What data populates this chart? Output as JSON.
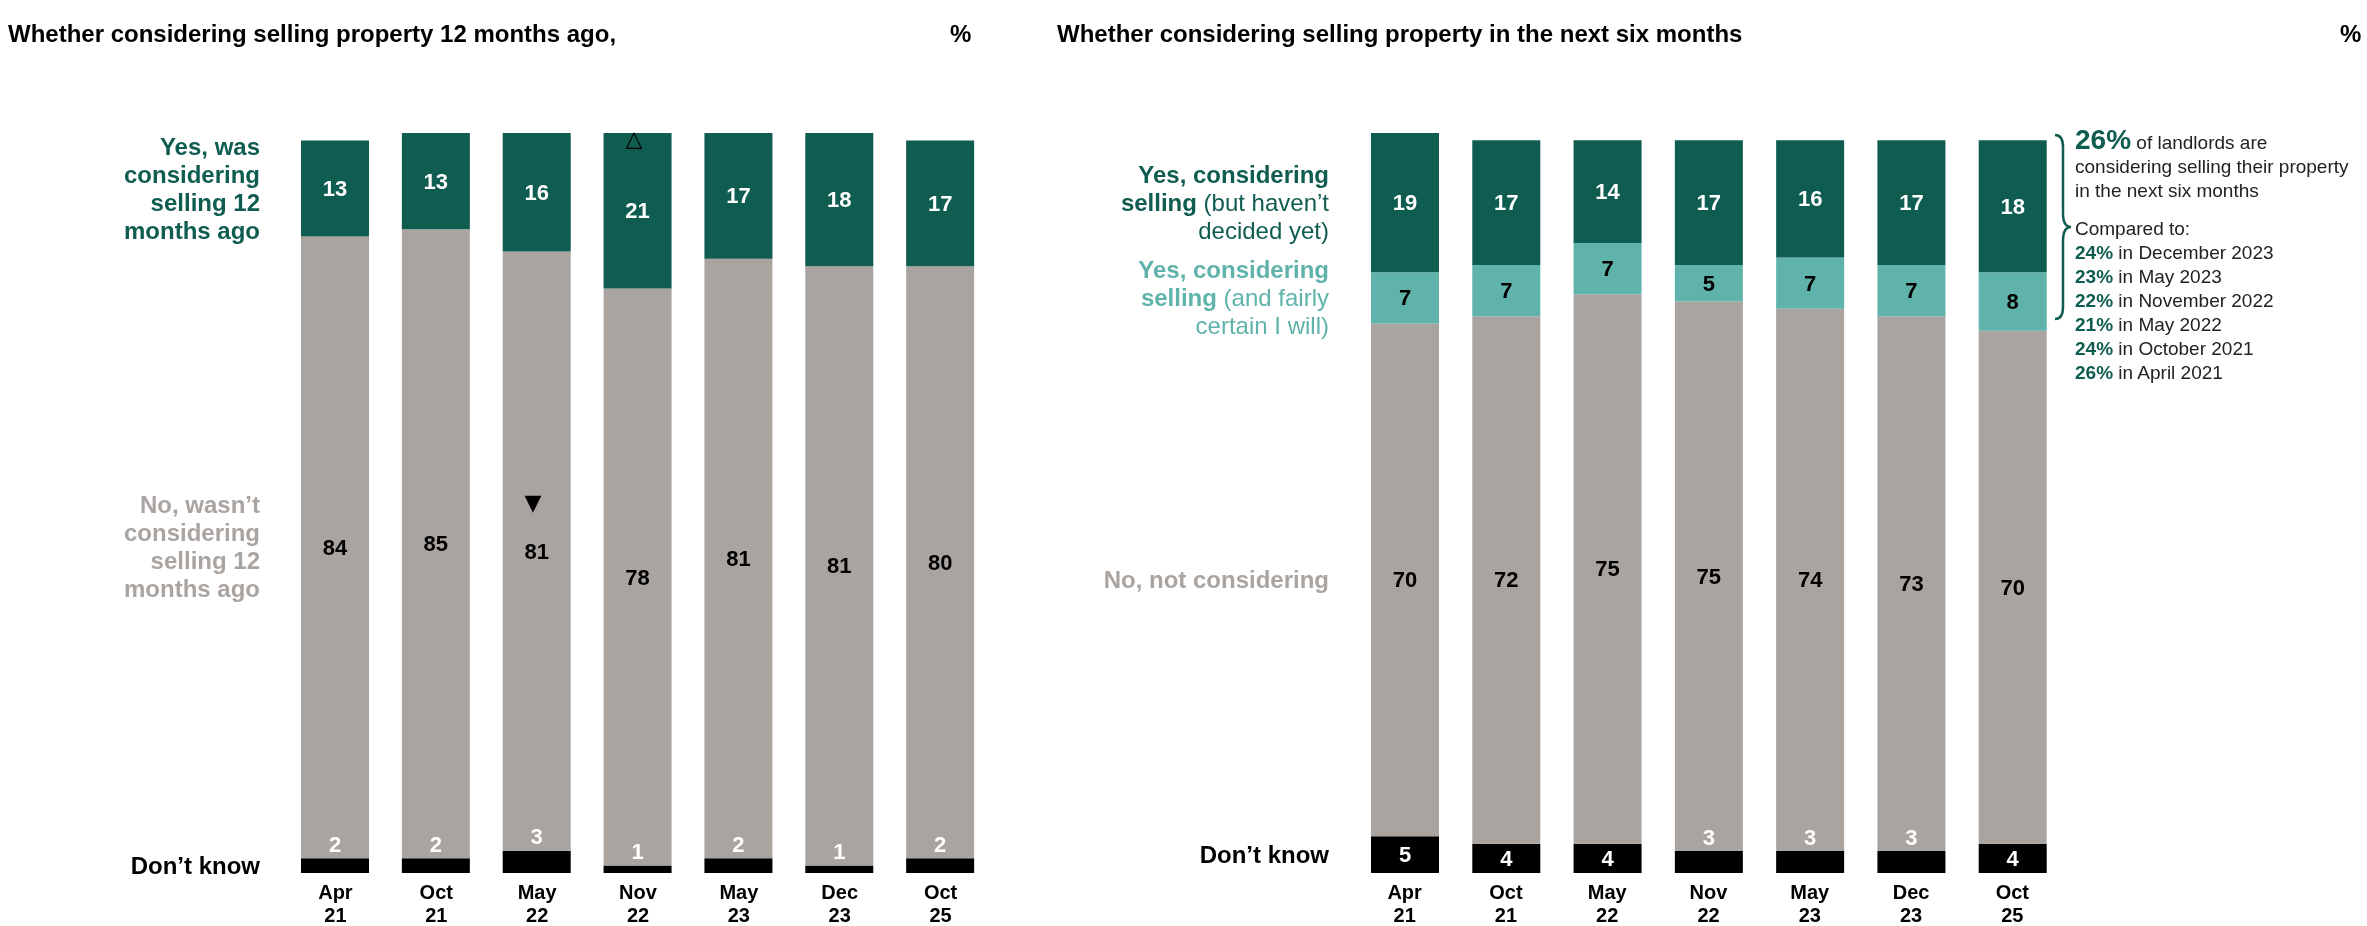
{
  "chart_data": [
    {
      "type": "bar",
      "stacked": true,
      "data_labels": true,
      "title": "Whether considering selling property 12 months ago,",
      "ylabel": "%",
      "categories": [
        "Apr 21",
        "Oct 21",
        "May 22",
        "Nov 22",
        "May 23",
        "Dec 23",
        "Oct 25"
      ],
      "series": [
        {
          "name": "Don’t know",
          "color": "#000000",
          "values": [
            2,
            2,
            3,
            1,
            2,
            1,
            2
          ]
        },
        {
          "name": "No, wasn’t considering selling 12 months ago",
          "color": "#aaa4a1",
          "values": [
            84,
            85,
            81,
            78,
            81,
            81,
            80
          ]
        },
        {
          "name": "Yes, was considering selling 12 months ago",
          "color": "#0f5c50",
          "values": [
            13,
            13,
            16,
            21,
            17,
            18,
            17
          ]
        }
      ],
      "annotations": [
        "▼",
        "△"
      ]
    },
    {
      "type": "bar",
      "stacked": true,
      "data_labels": true,
      "title": "Whether considering selling property in the next six months",
      "ylabel": "%",
      "categories": [
        "Apr 21",
        "Oct 21",
        "May 22",
        "Nov 22",
        "May 23",
        "Dec 23",
        "Oct 25"
      ],
      "series": [
        {
          "name": "Don’t know",
          "color": "#000000",
          "values": [
            5,
            4,
            4,
            3,
            3,
            3,
            4
          ]
        },
        {
          "name": "No, not considering",
          "color": "#aaa4a1",
          "values": [
            70,
            72,
            75,
            75,
            74,
            73,
            70
          ]
        },
        {
          "name": "Yes, considering selling (and fairly certain I will)",
          "color": "#5fb3aa",
          "values": [
            7,
            7,
            7,
            5,
            7,
            7,
            8
          ]
        },
        {
          "name": "Yes, considering selling (but haven’t decided yet)",
          "color": "#0f5c50",
          "values": [
            19,
            17,
            14,
            17,
            16,
            17,
            18
          ]
        }
      ],
      "annotations": [
        "26% of landlords are considering selling their property in the next six months",
        "Compared to:",
        "24% in December 2023",
        "23% in May 2023",
        "22% in November 2022",
        "21% in May 2022",
        "24% in October 2021",
        "26% in April 2021"
      ]
    }
  ]
}
